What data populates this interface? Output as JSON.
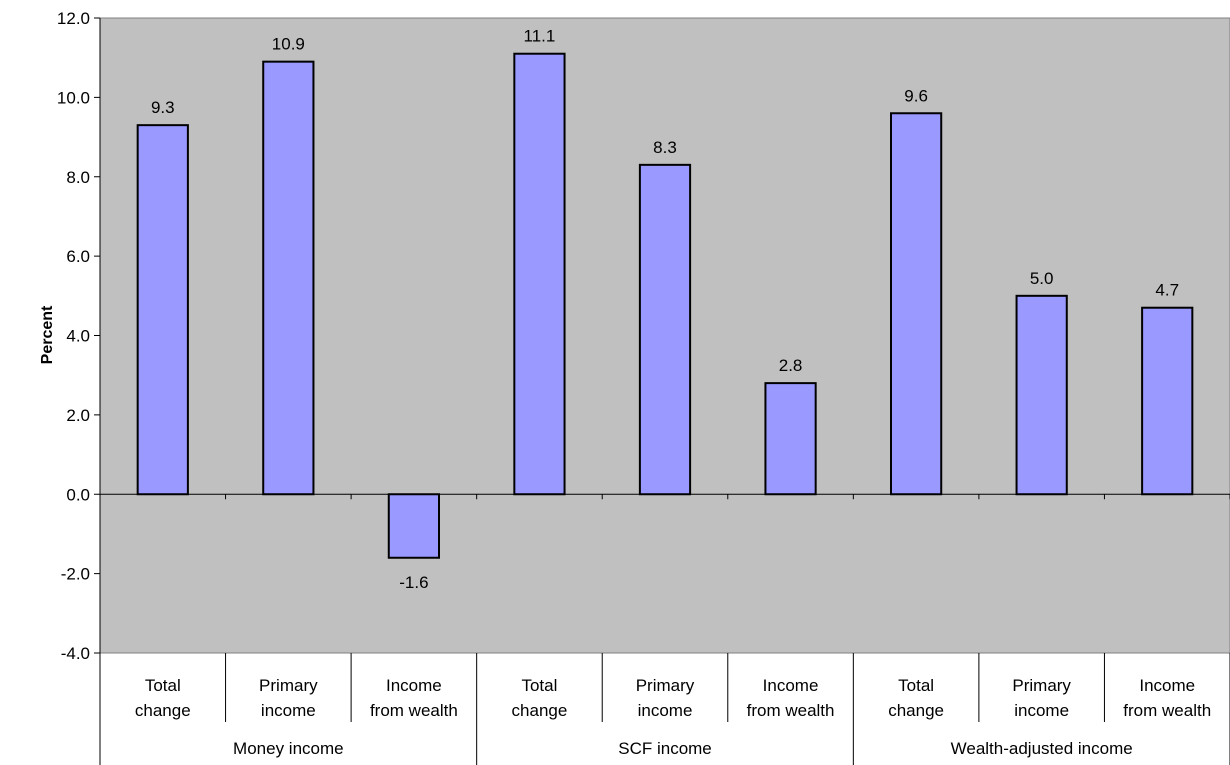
{
  "chart_data": {
    "type": "bar",
    "title": "",
    "xlabel": "",
    "ylabel": "Percent",
    "ylim": [
      -4.0,
      12.0
    ],
    "ytick_step": 2.0,
    "y_tick_labels": [
      "-4.0",
      "-2.0",
      "0.0",
      "2.0",
      "4.0",
      "6.0",
      "8.0",
      "10.0",
      "12.0"
    ],
    "grid": false,
    "legend": "none",
    "groups": [
      {
        "name": "Money income",
        "categories": [
          [
            "Total",
            "change"
          ],
          [
            "Primary",
            "income"
          ],
          [
            "Income",
            "from wealth"
          ]
        ],
        "values": [
          9.3,
          10.9,
          -1.6
        ],
        "labels": [
          "9.3",
          "10.9",
          "-1.6"
        ]
      },
      {
        "name": "SCF income",
        "categories": [
          [
            "Total",
            "change"
          ],
          [
            "Primary",
            "income"
          ],
          [
            "Income",
            "from wealth"
          ]
        ],
        "values": [
          11.1,
          8.3,
          2.8
        ],
        "labels": [
          "11.1",
          "8.3",
          "2.8"
        ]
      },
      {
        "name": "Wealth-adjusted income",
        "categories": [
          [
            "Total",
            "change"
          ],
          [
            "Primary",
            "income"
          ],
          [
            "Income",
            "from wealth"
          ]
        ],
        "values": [
          9.6,
          5.0,
          4.7
        ],
        "labels": [
          "9.6",
          "5.0",
          "4.7"
        ]
      }
    ],
    "colors": {
      "bar_fill": "#9999ff",
      "bar_stroke": "#000000",
      "plot_background": "#c0c0c0",
      "axis": "#000000"
    }
  }
}
